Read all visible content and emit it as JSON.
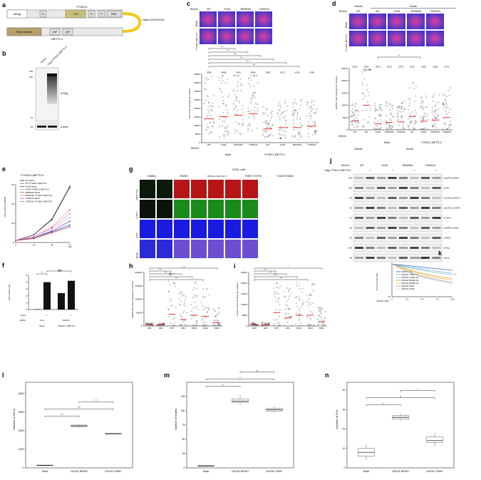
{
  "panels": {
    "a": {
      "label": "a",
      "ythdc1_title": "YTHDC1",
      "ythdc1_domains": [
        "3xFlag",
        "E",
        "YTH",
        "R",
        "P",
        "RED"
      ],
      "linker_label": "Linkers\n(GGGGSx3)",
      "mettl3_domains": [
        "MTase domain",
        "ZnF",
        "ZnF"
      ],
      "mettl3_title": "METTL3"
    },
    "b": {
      "label": "b",
      "lane_labels": [
        "Vector",
        "Flag-YTHDC1-METTL3"
      ],
      "mw": [
        "245",
        "180",
        "75",
        "48"
      ],
      "blots": [
        "α-Flag",
        "α-actin"
      ]
    },
    "c": {
      "label": "c",
      "col_labels": [
        "DDX41",
        "WT",
        "KO#1",
        "R525H#1",
        "Y259C#1"
      ],
      "row_labels": [
        "Mock",
        "YTHDC1-METTL3"
      ],
      "ylabel": "m6A mean intensity per nucleus",
      "yticks": [
        "0",
        "5000",
        "10000",
        "15000",
        "20000",
        "25000",
        "30000",
        "35000",
        "40000"
      ],
      "counts": [
        "(399)",
        "(488)",
        "(401)",
        "(426)",
        "(399)",
        "(417)",
        "(419)",
        "(395)"
      ],
      "xcats": [
        "WT",
        "KO#1",
        "R525H#1",
        "Y259C#1",
        "WT",
        "KO#1",
        "R525H#1",
        "Y259C#1"
      ],
      "ddx41_label": "DDX41",
      "groups": [
        "Mock",
        "YTHDC1-METTL3"
      ],
      "sig": "***"
    },
    "d": {
      "label": "d",
      "treat_labels": [
        "Vehicle",
        "Zeocin"
      ],
      "col_labels": [
        "DDX41",
        "WT",
        "WT",
        "KO#1",
        "R525H#1",
        "Y259C#1"
      ],
      "row_labels": [
        "Mock",
        "YTHDC1-METTL3"
      ],
      "ylabel": "RAD51 mean intensity per nucleus",
      "yticks": [
        "0",
        "5000",
        "10000",
        "15000",
        "20000",
        "25000"
      ],
      "counts": [
        "(235)",
        "(231)",
        "(224)",
        "(201)",
        "(279)",
        "(231)",
        "(262)",
        "(226)",
        "(272)"
      ],
      "xcats": [
        "WT",
        "WT",
        "KO#1",
        "R525H#1",
        "Y259C#1",
        "WT",
        "KO#1",
        "R525H#1",
        "Y259C#1"
      ],
      "groups": [
        "Vehicle",
        "Mock",
        "YTHDC1-METTL3",
        "Zeocin"
      ],
      "ddx41_label": "DDX41",
      "sig": "**"
    },
    "e": {
      "label": "e",
      "title": "YTHDC1-METTL3",
      "ylabel": "Cell number (x10000)",
      "xlabel": "(hr)",
      "legend": [
        "WT Mock",
        "WT YTHDC1-METTL3",
        "KO#1 Mock",
        "KO#1 YTHDC1-METTL3",
        "R525H#1 Mock",
        "R525H#1 YTHDC1-METTL3",
        "Y259C#1 Mock",
        "Y259C#1 YTHDC1-METTL3"
      ],
      "xticks": [
        "0",
        "24",
        "48",
        "72"
      ],
      "yticks": [
        "0",
        "20",
        "40",
        "60"
      ]
    },
    "f": {
      "label": "f",
      "title": "HR",
      "ylabel": "GFP positive (%)",
      "yticks": [
        "0",
        "1",
        "2",
        "3",
        "4",
        "5"
      ],
      "row_iscei": "I-SceI",
      "row_sirna": "siRNA",
      "iscei_values": [
        "-",
        "+",
        "-",
        "+"
      ],
      "sirna_values": [
        "Cont",
        "DDX41"
      ],
      "bottom_labels": [
        "Mock",
        "YTHDC1\n-METTL3"
      ],
      "sig": [
        "**",
        "n.s"
      ]
    },
    "g": {
      "label": "g",
      "title": "CD34⁺ cells",
      "groups": [
        "Healthy",
        "R525H",
        "R525H\nc.50G>4A>T",
        "Y259C+T227M",
        "Y152G+E345D"
      ],
      "samples": [
        "H#3",
        "H#4",
        "D#7",
        "D#4",
        "D#14",
        "D#12",
        "D#32"
      ],
      "row_labels": [
        "pRPA2 S33",
        "γ-H2AX",
        "DAPI",
        "Merge"
      ]
    },
    "h": {
      "label": "h",
      "ylabel": "pRPA2 S33 mean intensity per nucleus",
      "yticks": [
        "0",
        "50000",
        "100000",
        "150000",
        "200000"
      ],
      "xcats": [
        "H#3",
        "H#4",
        "D#7",
        "D#4",
        "D#14",
        "D#12",
        "D#32"
      ],
      "sig": [
        "n.s",
        "***"
      ]
    },
    "i": {
      "label": "i",
      "ylabel": "γ-H2AX mean intensity per nucleus",
      "yticks": [
        "0",
        "5000",
        "10000",
        "15000",
        "20000",
        "25000"
      ],
      "xcats": [
        "H#3",
        "H#4",
        "D#7",
        "D#4",
        "D#14",
        "D#12",
        "D#32"
      ],
      "sig": [
        "*",
        "***"
      ]
    },
    "j": {
      "label": "j",
      "ddx41_label": "DDX41 :",
      "col_groups": [
        "WT",
        "KO#1",
        "R525H#1",
        "Y259C#1"
      ],
      "flag_label": "Flag-YTHDC1-METTL3",
      "flag_signs": [
        "-",
        "+"
      ],
      "blots": [
        "α-pATR (pS428)",
        "α-ATR",
        "α-pCHK1 (pS317)",
        "α-pCHK1 (pS345)",
        "α-CHK1",
        "α-pRPA2 (pS33)",
        "α-RPA2",
        "α-Flag",
        "α-actin"
      ],
      "mw": [
        "245",
        "245",
        "63",
        "63",
        "63",
        "35",
        "35",
        "180",
        "48"
      ]
    },
    "k": {
      "label": "k",
      "title": "DDX41",
      "ylabel": "% of survival cells",
      "xlabel": "VE-821 (uM) :",
      "xticks": [
        "0",
        "2.5",
        "5.0",
        "7.5",
        "10.0"
      ],
      "ytick": "10",
      "legend": [
        "DDX41 WT",
        "DDX41 Y259C #1",
        "DDX41 Y259C #2",
        "DDX41 R525H #1",
        "DDX41 R525H #2",
        "DDX41 KO#1",
        "DDX41 KO#2"
      ],
      "sig": "***"
    },
    "l": {
      "label": "l",
      "ylabel": "Number of SNVs",
      "yticks": [
        "0",
        "1000",
        "2000",
        "3000",
        "4000"
      ],
      "xcats": [
        "Mock",
        "DDX41-R525H",
        "DDX41-Y259C"
      ],
      "sig": [
        "****",
        "****",
        "***"
      ]
    },
    "m": {
      "label": "m",
      "ylabel": "Number of indels",
      "yticks": [
        "0",
        "25",
        "50",
        "75",
        "100",
        "125"
      ],
      "xcats": [
        "Mock",
        "DDX41-R525H",
        "DDX41-Y259C"
      ],
      "sig": [
        "**",
        "**",
        "#"
      ]
    },
    "n": {
      "label": "n",
      "ylabel": "Number of SVs",
      "yticks": [
        "0",
        "10",
        "20",
        "30",
        "40"
      ],
      "xcats": [
        "Mock",
        "DDX41-R525H",
        "DDX41-Y259C"
      ],
      "sig": [
        "**",
        "#",
        "*"
      ]
    }
  },
  "chart_data": [
    {
      "panel": "l",
      "type": "box",
      "categories": [
        "Mock",
        "DDX41-R525H",
        "DDX41-Y259C"
      ],
      "ylabel": "Number of SNVs",
      "ylim": [
        0,
        4600
      ],
      "boxes": [
        {
          "min": 130,
          "q1": 130,
          "median": 140,
          "q3": 150,
          "max": 150
        },
        {
          "min": 2180,
          "q1": 2220,
          "median": 2260,
          "q3": 2300,
          "max": 2330
        },
        {
          "min": 1820,
          "q1": 1830,
          "median": 1840,
          "q3": 1850,
          "max": 1860
        }
      ]
    },
    {
      "panel": "m",
      "type": "box",
      "categories": [
        "Mock",
        "DDX41-R525H",
        "DDX41-Y259C"
      ],
      "ylabel": "Number of indels",
      "ylim": [
        0,
        150
      ],
      "boxes": [
        {
          "min": 2,
          "q1": 3,
          "median": 3,
          "q3": 4,
          "max": 4
        },
        {
          "min": 110,
          "q1": 114,
          "median": 117,
          "q3": 121,
          "max": 128
        },
        {
          "min": 96,
          "q1": 99,
          "median": 102,
          "q3": 104,
          "max": 108
        }
      ]
    },
    {
      "panel": "n",
      "type": "box",
      "categories": [
        "Mock",
        "DDX41-R525H",
        "DDX41-Y259C"
      ],
      "ylabel": "Number of SVs",
      "ylim": [
        0,
        44
      ],
      "boxes": [
        {
          "min": 4,
          "q1": 6,
          "median": 8,
          "q3": 10,
          "max": 12
        },
        {
          "min": 24,
          "q1": 25,
          "median": 26,
          "q3": 27,
          "max": 28
        },
        {
          "min": 11,
          "q1": 13,
          "median": 14,
          "q3": 16,
          "max": 18
        }
      ]
    },
    {
      "panel": "e",
      "type": "line",
      "x": [
        0,
        24,
        48,
        72
      ],
      "ylabel": "Cell number (x10000)",
      "ylim": [
        0,
        65
      ],
      "series": [
        {
          "name": "WT Mock",
          "color": "#000000",
          "values": [
            2,
            8,
            24,
            58
          ]
        },
        {
          "name": "WT YTHDC1-METTL3",
          "color": "#666666",
          "values": [
            2,
            8,
            23,
            56
          ]
        },
        {
          "name": "KO#1 Mock",
          "color": "#1f3fbf",
          "values": [
            2,
            5,
            11,
            18
          ]
        },
        {
          "name": "KO#1 YTHDC1-METTL3",
          "color": "#7fa0ff",
          "values": [
            2,
            6,
            14,
            26
          ]
        },
        {
          "name": "R525H#1 Mock",
          "color": "#c0392b",
          "values": [
            2,
            4,
            10,
            16
          ]
        },
        {
          "name": "R525H#1 YTHDC1-METTL3",
          "color": "#ff6f6f",
          "values": [
            2,
            6,
            15,
            30
          ]
        },
        {
          "name": "Y259C#1 Mock",
          "color": "#8e44ad",
          "values": [
            2,
            5,
            12,
            22
          ]
        },
        {
          "name": "Y259C#1 YTHDC1-METTL3",
          "color": "#e84393",
          "values": [
            2,
            6,
            16,
            34
          ]
        }
      ]
    },
    {
      "panel": "f",
      "type": "bar",
      "categories": [
        "Cont -",
        "Cont +",
        "DDX41 -",
        "DDX41 +"
      ],
      "ylabel": "GFP positive (%)",
      "ylim": [
        0,
        5
      ],
      "values": [
        0.05,
        4.0,
        2.4,
        4.2
      ]
    },
    {
      "panel": "k",
      "type": "line",
      "x": [
        0,
        2.5,
        5.0,
        7.5,
        10.0
      ],
      "ylabel": "% of survival cells",
      "series": [
        {
          "name": "DDX41 WT",
          "color": "#1f5fbf",
          "values": [
            100,
            90,
            80,
            72,
            65
          ]
        },
        {
          "name": "DDX41 Y259C #1",
          "color": "#6fa8dc",
          "values": [
            100,
            82,
            70,
            60,
            52
          ]
        },
        {
          "name": "DDX41 Y259C #2",
          "color": "#76c7c0",
          "values": [
            100,
            78,
            64,
            54,
            46
          ]
        },
        {
          "name": "DDX41 R525H #1",
          "color": "#e69138",
          "values": [
            100,
            70,
            52,
            42,
            36
          ]
        },
        {
          "name": "DDX41 R525H #2",
          "color": "#f1c232",
          "values": [
            100,
            66,
            48,
            38,
            32
          ]
        },
        {
          "name": "DDX41 KO#1",
          "color": "#999999",
          "values": [
            100,
            60,
            42,
            33,
            27
          ]
        },
        {
          "name": "DDX41 KO#2",
          "color": "#cccccc",
          "values": [
            100,
            58,
            40,
            31,
            25
          ]
        }
      ]
    }
  ]
}
